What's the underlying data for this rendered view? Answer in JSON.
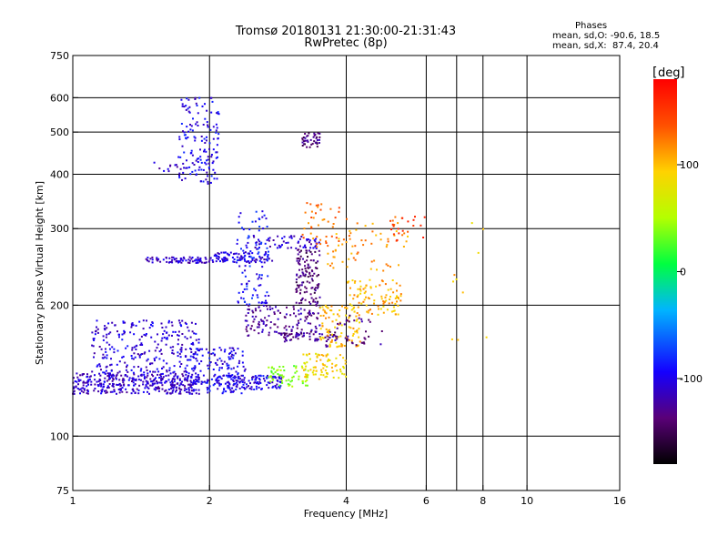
{
  "header": {
    "title_line1": "Tromsø 20180131 21:30:00-21:31:43",
    "title_line2": "RwPretec (8p)",
    "info_title": "Phases",
    "info_line1": "mean, sd,O: -90.6, 18.5",
    "info_line2": "mean, sd,X:  87.4, 20.4"
  },
  "colorbar": {
    "unit": "deg",
    "range": [
      -180,
      180
    ],
    "ticks": [
      {
        "value": 100,
        "label": "100"
      },
      {
        "value": 0,
        "label": "0"
      },
      {
        "value": -100,
        "label": "-100"
      }
    ]
  },
  "chart_data": {
    "type": "scatter",
    "xlabel": "Frequency [MHz]",
    "ylabel": "Stationary phase Virtual Height [km]",
    "x_scale": "log",
    "y_scale": "log",
    "xlim": [
      1,
      16
    ],
    "ylim": [
      75,
      750
    ],
    "grid": true,
    "x_ticks": [
      {
        "value": 1,
        "label": "1"
      },
      {
        "value": 2,
        "label": "2"
      },
      {
        "value": 4,
        "label": "4"
      },
      {
        "value": 6,
        "label": "6"
      },
      {
        "value": 8,
        "label": "8"
      },
      {
        "value": 10,
        "label": "10"
      },
      {
        "value": 16,
        "label": "16"
      }
    ],
    "x_grid": [
      2,
      4,
      6,
      7,
      8,
      10
    ],
    "y_ticks": [
      {
        "value": 75,
        "label": "75"
      },
      {
        "value": 100,
        "label": "100"
      },
      {
        "value": 200,
        "label": "200"
      },
      {
        "value": 300,
        "label": "300"
      },
      {
        "value": 400,
        "label": "400"
      },
      {
        "value": 500,
        "label": "500"
      },
      {
        "value": 600,
        "label": "600"
      },
      {
        "value": 750,
        "label": "750"
      }
    ],
    "y_grid": [
      100,
      200,
      300,
      400,
      500,
      600
    ],
    "series": [
      {
        "color_by": "phase_deg",
        "clusters": [
          {
            "f": [
              1.0,
              1.9
            ],
            "h": [
              125,
              140
            ],
            "phase": -110,
            "n": 380
          },
          {
            "f": [
              1.1,
              1.9
            ],
            "h": [
              140,
              185
            ],
            "phase": -105,
            "n": 260
          },
          {
            "f": [
              1.8,
              2.4
            ],
            "h": [
              125,
              160
            ],
            "phase": -100,
            "n": 160
          },
          {
            "f": [
              2.0,
              2.9
            ],
            "h": [
              128,
              138
            ],
            "phase": -100,
            "n": 140
          },
          {
            "f": [
              1.45,
              2.05
            ],
            "h": [
              250,
              258
            ],
            "phase": -110,
            "n": 80
          },
          {
            "f": [
              2.05,
              2.75
            ],
            "h": [
              250,
              265
            ],
            "phase": -105,
            "n": 90
          },
          {
            "f": [
              1.7,
              2.1
            ],
            "h": [
              380,
              600
            ],
            "phase": -100,
            "n": 150
          },
          {
            "f": [
              1.5,
              1.75
            ],
            "h": [
              400,
              430
            ],
            "phase": -110,
            "n": 10
          },
          {
            "f": [
              2.3,
              2.7
            ],
            "h": [
              200,
              330
            ],
            "phase": -90,
            "n": 100
          },
          {
            "f": [
              2.4,
              3.5
            ],
            "h": [
              170,
              200
            ],
            "phase": -125,
            "n": 130
          },
          {
            "f": [
              2.5,
              3.5
            ],
            "h": [
              270,
              290
            ],
            "phase": -110,
            "n": 60
          },
          {
            "f": [
              3.1,
              3.5
            ],
            "h": [
              200,
              270
            ],
            "phase": -140,
            "n": 120
          },
          {
            "f": [
              3.2,
              3.5
            ],
            "h": [
              460,
              500
            ],
            "phase": -135,
            "n": 40
          },
          {
            "f": [
              2.9,
              3.8
            ],
            "h": [
              165,
              175
            ],
            "phase": -130,
            "n": 60
          },
          {
            "f": [
              2.7,
              3.3
            ],
            "h": [
              130,
              145
            ],
            "phase": 40,
            "n": 60
          },
          {
            "f": [
              3.2,
              4.0
            ],
            "h": [
              135,
              155
            ],
            "phase": 90,
            "n": 80
          },
          {
            "f": [
              3.5,
              4.3
            ],
            "h": [
              160,
              200
            ],
            "phase": 100,
            "n": 100
          },
          {
            "f": [
              4.0,
              5.3
            ],
            "h": [
              190,
              230
            ],
            "phase": 105,
            "n": 100
          },
          {
            "f": [
              3.6,
              5.5
            ],
            "h": [
              240,
              320
            ],
            "phase": 115,
            "n": 70
          },
          {
            "f": [
              3.2,
              3.9
            ],
            "h": [
              270,
              350
            ],
            "phase": 130,
            "n": 40
          },
          {
            "f": [
              5.0,
              6.0
            ],
            "h": [
              280,
              320
            ],
            "phase": 150,
            "n": 20
          },
          {
            "f": [
              6.5,
              8.5
            ],
            "h": [
              160,
              320
            ],
            "phase": 100,
            "n": 10
          },
          {
            "f": [
              3.6,
              4.8
            ],
            "h": [
              160,
              190
            ],
            "phase": -130,
            "n": 40
          }
        ]
      }
    ]
  }
}
